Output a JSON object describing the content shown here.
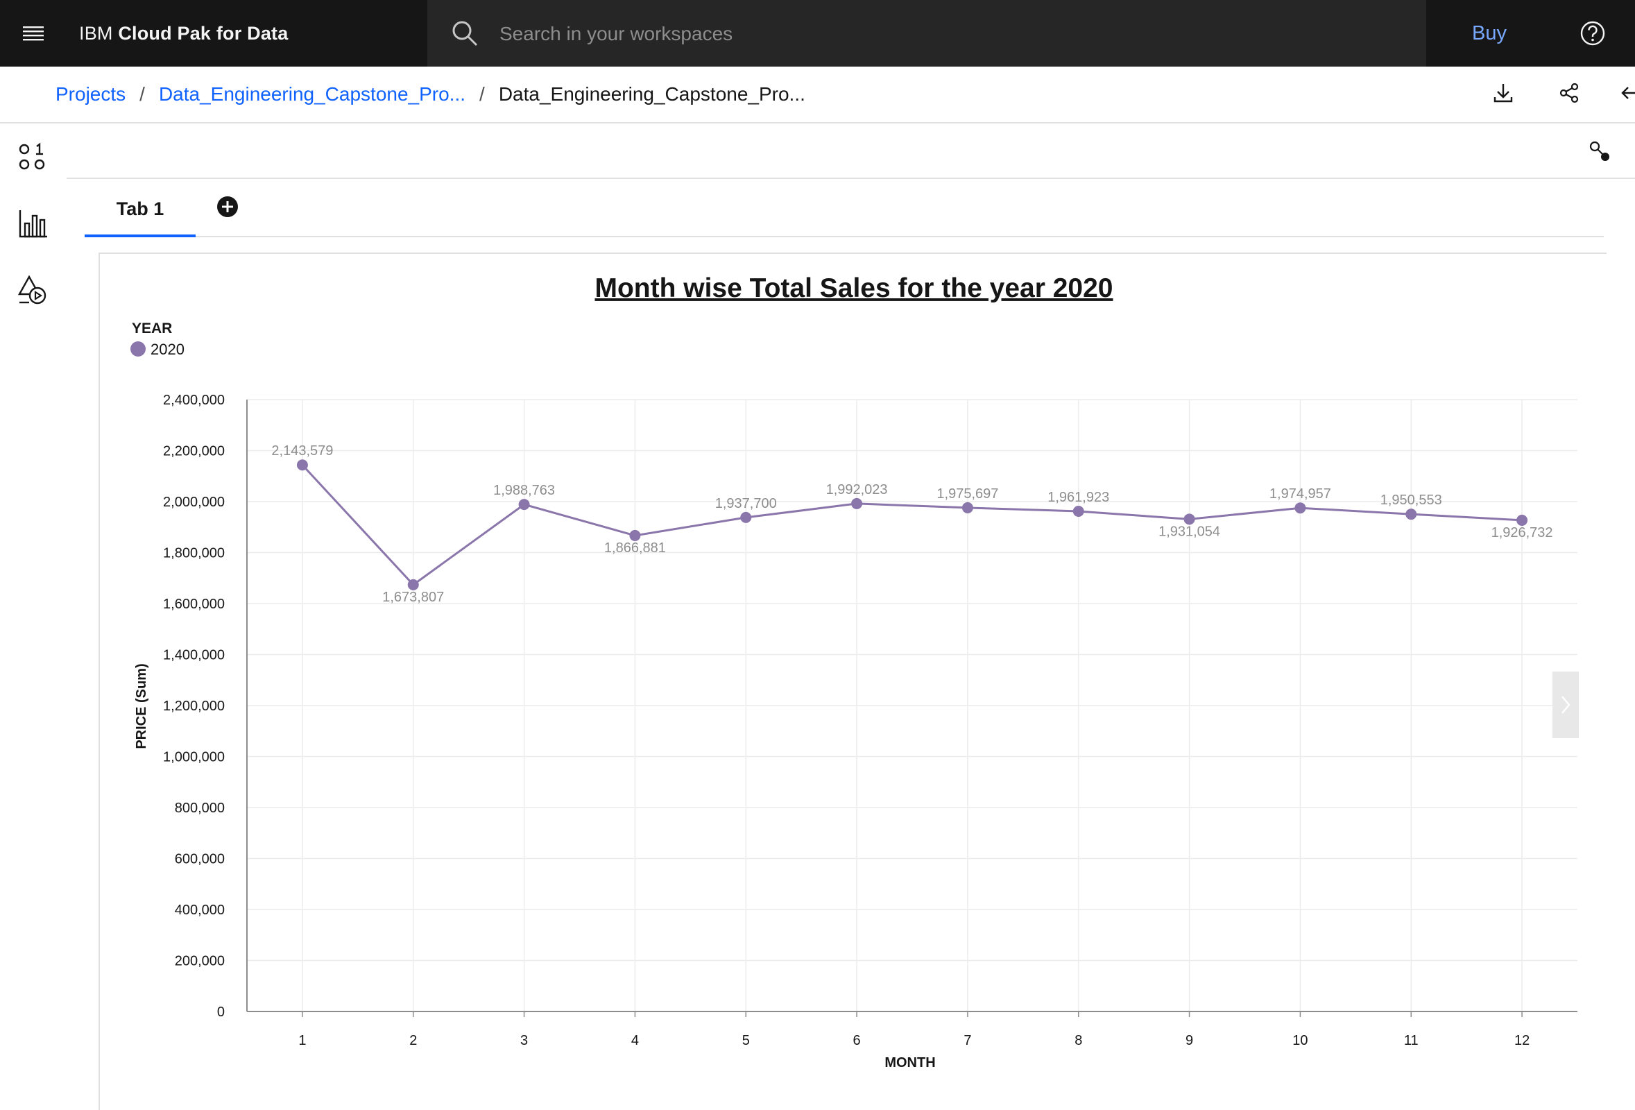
{
  "header": {
    "brand_prefix": "IBM",
    "brand_name": "Cloud Pak for Data",
    "search_placeholder": "Search in your workspaces",
    "buy_label": "Buy",
    "menu_icon": "hamburger-menu-icon",
    "help_icon": "help-icon"
  },
  "breadcrumb": {
    "items": [
      "Projects",
      "Data_Engineering_Capstone_Pro...",
      "Data_Engineering_Capstone_Pro..."
    ],
    "separator": "/"
  },
  "toolbar": {
    "download_icon": "download-icon",
    "share_icon": "share-icon",
    "collapse_icon": "arrow-left-icon",
    "filter_icon": "filter-icon"
  },
  "left_rail": [
    "data-icon",
    "visualization-icon",
    "shapes-icon"
  ],
  "tabs": {
    "items": [
      "Tab 1"
    ],
    "add_icon": "add-circle-icon"
  },
  "colors": {
    "header_bg": "#161616",
    "search_bg": "#262626",
    "link": "#0f62fe",
    "buy": "#78a9ff",
    "series": "#8a76ab"
  },
  "chart_data": {
    "type": "line",
    "title": "Month wise Total Sales for the year 2020",
    "legend_title": "YEAR",
    "legend_placement": "top-left",
    "xlabel": "MONTH",
    "ylabel": "PRICE (Sum)",
    "categories": [
      "1",
      "2",
      "3",
      "4",
      "5",
      "6",
      "7",
      "8",
      "9",
      "10",
      "11",
      "12"
    ],
    "series": [
      {
        "name": "2020",
        "values": [
          2143579,
          1673807,
          1988763,
          1866881,
          1937700,
          1992023,
          1975697,
          1961923,
          1931054,
          1974957,
          1950553,
          1926732
        ],
        "labels": [
          "2,143,579",
          "1,673,807",
          "1,988,763",
          "1,866,881",
          "1,937,700",
          "1,992,023",
          "1,975,697",
          "1,961,923",
          "1,931,054",
          "1,974,957",
          "1,950,553",
          "1,926,732"
        ]
      }
    ],
    "ylim": [
      0,
      2400000
    ],
    "yticks": [
      0,
      200000,
      400000,
      600000,
      800000,
      1000000,
      1200000,
      1400000,
      1600000,
      1800000,
      2000000,
      2200000,
      2400000
    ],
    "ytick_labels": [
      "0",
      "200,000",
      "400,000",
      "600,000",
      "800,000",
      "1,000,000",
      "1,200,000",
      "1,400,000",
      "1,600,000",
      "1,800,000",
      "2,000,000",
      "2,200,000",
      "2,400,000"
    ],
    "grid": true
  }
}
